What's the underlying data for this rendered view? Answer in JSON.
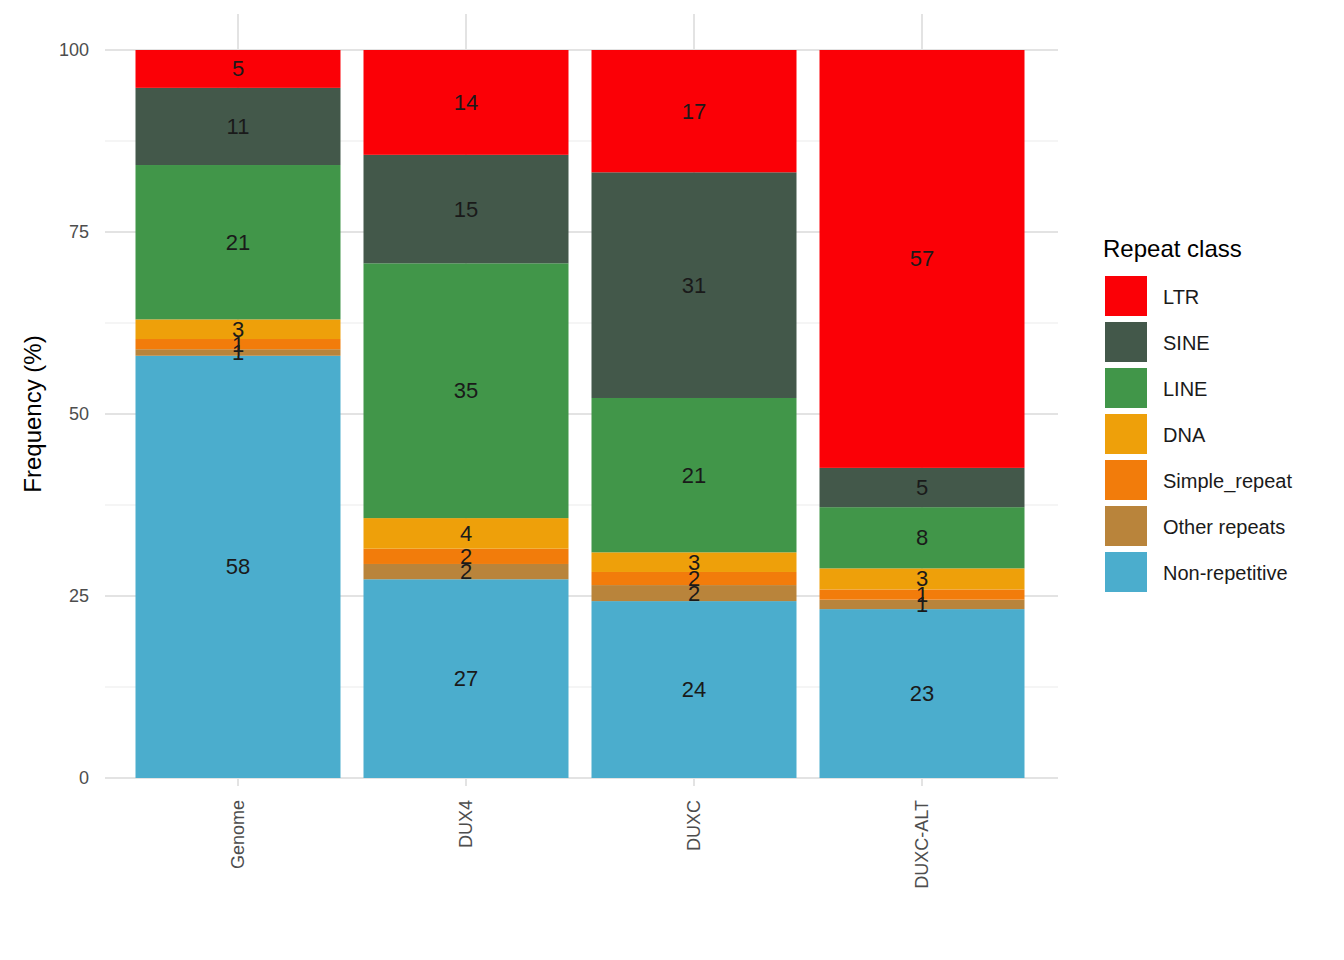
{
  "chart_data": {
    "type": "bar",
    "stacked": true,
    "data_labels": true,
    "grid": true,
    "legend": "right",
    "legend_title": "Repeat class",
    "y_label": "Frequency (%)",
    "categories": [
      "Genome",
      "DUX4",
      "DUXC",
      "DUXC-ALT"
    ],
    "ylim": [
      0,
      100
    ],
    "yticks": [
      0,
      25,
      50,
      75,
      100
    ],
    "series": [
      {
        "name": "LTR",
        "color": "#fb0006",
        "values": [
          5.2,
          14.4,
          16.8,
          57.4
        ],
        "value_labels": [
          "5",
          "14",
          "17",
          "57"
        ]
      },
      {
        "name": "SINE",
        "color": "#43584a",
        "values": [
          10.6,
          14.9,
          31.0,
          5.4
        ],
        "value_labels": [
          "11",
          "15",
          "31",
          "5"
        ]
      },
      {
        "name": "LINE",
        "color": "#419649",
        "values": [
          21.2,
          35.0,
          21.2,
          8.4
        ],
        "value_labels": [
          "21",
          "35",
          "21",
          "8"
        ]
      },
      {
        "name": "DNA",
        "color": "#eea00a",
        "values": [
          2.7,
          4.2,
          2.7,
          2.9
        ],
        "value_labels": [
          "3",
          "4",
          "3",
          "3"
        ]
      },
      {
        "name": "Simple_repeat",
        "color": "#f27c0b",
        "values": [
          1.4,
          2.1,
          1.8,
          1.4
        ],
        "value_labels": [
          "1",
          "2",
          "2",
          "1"
        ]
      },
      {
        "name": "Other repeats",
        "color": "#b9843b",
        "values": [
          0.9,
          2.1,
          2.2,
          1.3
        ],
        "value_labels": [
          "1",
          "2",
          "2",
          "1"
        ]
      },
      {
        "name": "Non-repetitive",
        "color": "#4badcd",
        "values": [
          58.0,
          27.3,
          24.3,
          23.2
        ],
        "value_labels": [
          "58",
          "27",
          "24",
          "23"
        ]
      }
    ]
  }
}
